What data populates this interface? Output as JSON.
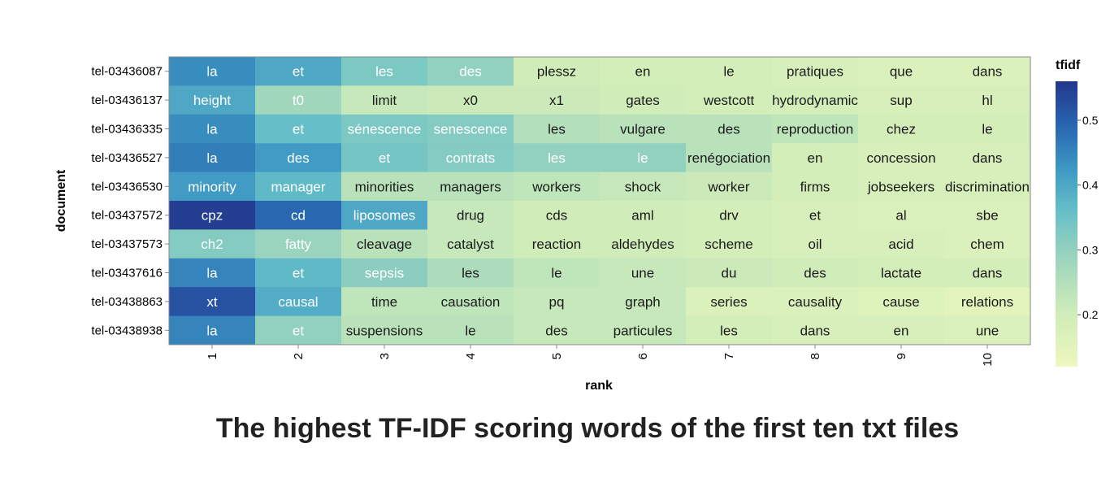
{
  "chart_data": {
    "type": "heatmap",
    "title": "The highest TF-IDF scoring words of the first ten txt files",
    "xlabel": "rank",
    "ylabel": "document",
    "x": [
      "1",
      "2",
      "3",
      "4",
      "5",
      "6",
      "7",
      "8",
      "9",
      "10"
    ],
    "y": [
      "tel-03436087",
      "tel-03436137",
      "tel-03436335",
      "tel-03436527",
      "tel-03436530",
      "tel-03437572",
      "tel-03437573",
      "tel-03437616",
      "tel-03438863",
      "tel-03438938"
    ],
    "legend": {
      "title": "tfidf",
      "ticks": [
        0.2,
        0.3,
        0.4,
        0.5
      ],
      "range": [
        0.12,
        0.56
      ],
      "placement": "right"
    },
    "words": [
      [
        "la",
        "et",
        "les",
        "des",
        "plessz",
        "en",
        "le",
        "pratiques",
        "que",
        "dans"
      ],
      [
        "height",
        "t0",
        "limit",
        "x0",
        "x1",
        "gates",
        "westcott",
        "hydrodynamic",
        "sup",
        "hl"
      ],
      [
        "la",
        "et",
        "sénescence",
        "senescence",
        "les",
        "vulgare",
        "des",
        "reproduction",
        "chez",
        "le"
      ],
      [
        "la",
        "des",
        "et",
        "contrats",
        "les",
        "le",
        "renégociation",
        "en",
        "concession",
        "dans"
      ],
      [
        "minority",
        "manager",
        "minorities",
        "managers",
        "workers",
        "shock",
        "worker",
        "firms",
        "jobseekers",
        "discrimination"
      ],
      [
        "cpz",
        "cd",
        "liposomes",
        "drug",
        "cds",
        "aml",
        "drv",
        "et",
        "al",
        "sbe"
      ],
      [
        "ch2",
        "fatty",
        "cleavage",
        "catalyst",
        "reaction",
        "aldehydes",
        "scheme",
        "oil",
        "acid",
        "chem"
      ],
      [
        "la",
        "et",
        "sepsis",
        "les",
        "le",
        "une",
        "du",
        "des",
        "lactate",
        "dans"
      ],
      [
        "xt",
        "causal",
        "time",
        "causation",
        "pq",
        "graph",
        "series",
        "causality",
        "cause",
        "relations"
      ],
      [
        "la",
        "et",
        "suspensions",
        "le",
        "des",
        "particules",
        "les",
        "dans",
        "en",
        "une"
      ]
    ],
    "values": [
      [
        0.44,
        0.4,
        0.33,
        0.3,
        0.2,
        0.19,
        0.19,
        0.18,
        0.17,
        0.17
      ],
      [
        0.4,
        0.28,
        0.22,
        0.21,
        0.21,
        0.2,
        0.19,
        0.19,
        0.18,
        0.18
      ],
      [
        0.44,
        0.36,
        0.33,
        0.32,
        0.25,
        0.24,
        0.24,
        0.23,
        0.19,
        0.19
      ],
      [
        0.46,
        0.42,
        0.34,
        0.32,
        0.3,
        0.3,
        0.24,
        0.19,
        0.18,
        0.18
      ],
      [
        0.42,
        0.37,
        0.24,
        0.24,
        0.23,
        0.22,
        0.21,
        0.19,
        0.18,
        0.18
      ],
      [
        0.55,
        0.49,
        0.4,
        0.22,
        0.2,
        0.2,
        0.19,
        0.18,
        0.17,
        0.17
      ],
      [
        0.32,
        0.29,
        0.24,
        0.22,
        0.2,
        0.2,
        0.19,
        0.18,
        0.18,
        0.17
      ],
      [
        0.45,
        0.37,
        0.31,
        0.26,
        0.23,
        0.22,
        0.21,
        0.2,
        0.19,
        0.19
      ],
      [
        0.52,
        0.39,
        0.23,
        0.23,
        0.22,
        0.22,
        0.17,
        0.17,
        0.16,
        0.15
      ],
      [
        0.45,
        0.3,
        0.24,
        0.24,
        0.22,
        0.22,
        0.19,
        0.18,
        0.18,
        0.17
      ]
    ],
    "grid": false
  }
}
